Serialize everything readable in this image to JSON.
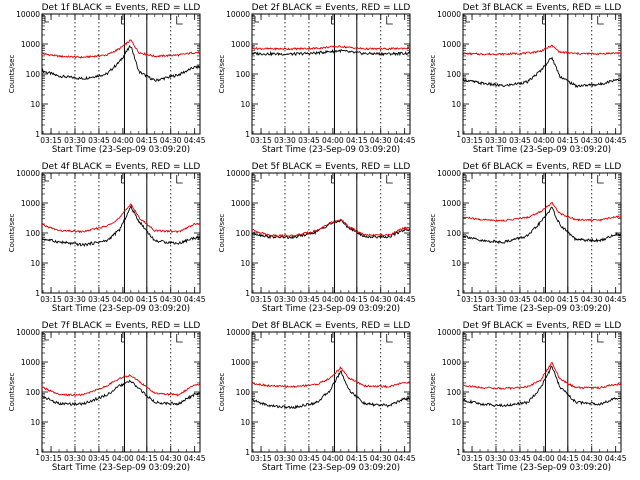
{
  "chart_data": [
    {
      "type": "line",
      "title": "Det 1f BLACK = Events, RED = LLD",
      "xlabel": "Start Time (23-Sep-09 03:09:20)",
      "ylabel": "Counts/sec",
      "x_ticks": [
        "03:15",
        "03:30",
        "03:45",
        "04:00",
        "04:15",
        "04:30",
        "04:45"
      ],
      "y_ticks": [
        "1",
        "10",
        "100",
        "1000",
        "10000"
      ],
      "ylim": [
        1,
        10000
      ],
      "yscale": "log",
      "vlines_dotted": [
        "03:30",
        "03:45",
        "04:30"
      ],
      "vlines_solid": [
        "04:01",
        "04:15"
      ],
      "x": [
        "03:09",
        "03:20",
        "03:35",
        "03:50",
        "03:58",
        "04:05",
        "04:10",
        "04:20",
        "04:35",
        "04:45"
      ],
      "series": [
        {
          "name": "BLACK = Events",
          "color": "#000000",
          "values": [
            130,
            85,
            70,
            100,
            260,
            900,
            120,
            60,
            95,
            170
          ]
        },
        {
          "name": "RED = LLD",
          "color": "#e00000",
          "values": [
            480,
            390,
            360,
            430,
            700,
            1350,
            520,
            390,
            430,
            520
          ]
        }
      ]
    },
    {
      "type": "line",
      "title": "Det 2f BLACK = Events, RED = LLD",
      "xlabel": "Start Time (23-Sep-09 03:09:20)",
      "ylabel": "Counts/sec",
      "x_ticks": [
        "03:15",
        "03:30",
        "03:45",
        "04:00",
        "04:15",
        "04:30",
        "04:45"
      ],
      "y_ticks": [
        "1",
        "10",
        "100",
        "1000",
        "10000"
      ],
      "ylim": [
        1,
        10000
      ],
      "yscale": "log",
      "vlines_dotted": [
        "03:30",
        "03:45",
        "04:30"
      ],
      "vlines_solid": [
        "04:01",
        "04:15"
      ],
      "x": [
        "03:09",
        "03:20",
        "03:35",
        "03:50",
        "03:58",
        "04:05",
        "04:10",
        "04:20",
        "04:35",
        "04:45"
      ],
      "series": [
        {
          "name": "BLACK = Events",
          "color": "#000000",
          "values": [
            480,
            470,
            460,
            500,
            560,
            600,
            540,
            480,
            470,
            490
          ]
        },
        {
          "name": "RED = LLD",
          "color": "#e00000",
          "values": [
            720,
            690,
            690,
            720,
            790,
            830,
            770,
            690,
            690,
            720
          ]
        }
      ]
    },
    {
      "type": "line",
      "title": "Det 3f BLACK = Events, RED = LLD",
      "xlabel": "Start Time (23-Sep-09 03:09:20)",
      "ylabel": "Counts/sec",
      "x_ticks": [
        "03:15",
        "03:30",
        "03:45",
        "04:00",
        "04:15",
        "04:30",
        "04:45"
      ],
      "y_ticks": [
        "1",
        "10",
        "100",
        "1000",
        "10000"
      ],
      "ylim": [
        1,
        10000
      ],
      "yscale": "log",
      "vlines_dotted": [
        "03:30",
        "03:45",
        "04:30"
      ],
      "vlines_solid": [
        "04:01",
        "04:15"
      ],
      "x": [
        "03:09",
        "03:20",
        "03:35",
        "03:50",
        "03:58",
        "04:05",
        "04:10",
        "04:20",
        "04:35",
        "04:45"
      ],
      "series": [
        {
          "name": "BLACK = Events",
          "color": "#000000",
          "values": [
            65,
            50,
            40,
            55,
            130,
            360,
            85,
            40,
            45,
            65
          ]
        },
        {
          "name": "RED = LLD",
          "color": "#e00000",
          "values": [
            480,
            460,
            460,
            500,
            580,
            880,
            540,
            480,
            470,
            500
          ]
        }
      ]
    },
    {
      "type": "line",
      "title": "Det 4f BLACK = Events, RED = LLD",
      "xlabel": "Start Time (23-Sep-09 03:09:20)",
      "ylabel": "Counts/sec",
      "x_ticks": [
        "03:15",
        "03:30",
        "03:45",
        "04:00",
        "04:15",
        "04:30",
        "04:45"
      ],
      "y_ticks": [
        "1",
        "10",
        "100",
        "1000",
        "10000"
      ],
      "ylim": [
        1,
        10000
      ],
      "yscale": "log",
      "vlines_dotted": [
        "03:30",
        "03:45",
        "04:30"
      ],
      "vlines_solid": [
        "04:01",
        "04:15"
      ],
      "x": [
        "03:09",
        "03:20",
        "03:35",
        "03:50",
        "03:58",
        "04:05",
        "04:10",
        "04:20",
        "04:35",
        "04:45"
      ],
      "series": [
        {
          "name": "BLACK = Events",
          "color": "#000000",
          "values": [
            65,
            50,
            40,
            55,
            130,
            750,
            250,
            55,
            45,
            70
          ]
        },
        {
          "name": "RED = LLD",
          "color": "#e00000",
          "values": [
            190,
            120,
            110,
            170,
            320,
            950,
            330,
            120,
            110,
            200
          ]
        }
      ]
    },
    {
      "type": "line",
      "title": "Det 5f BLACK = Events, RED = LLD",
      "xlabel": "Start Time (23-Sep-09 03:09:20)",
      "ylabel": "Counts/sec",
      "x_ticks": [
        "03:15",
        "03:30",
        "03:45",
        "04:00",
        "04:15",
        "04:30",
        "04:45"
      ],
      "y_ticks": [
        "1",
        "10",
        "100",
        "1000",
        "10000"
      ],
      "ylim": [
        1,
        10000
      ],
      "yscale": "log",
      "vlines_dotted": [
        "03:30",
        "03:45",
        "04:30"
      ],
      "vlines_solid": [
        "04:01",
        "04:15"
      ],
      "x": [
        "03:09",
        "03:20",
        "03:35",
        "03:50",
        "03:58",
        "04:05",
        "04:10",
        "04:20",
        "04:35",
        "04:45"
      ],
      "series": [
        {
          "name": "BLACK = Events",
          "color": "#000000",
          "values": [
            100,
            75,
            70,
            110,
            200,
            260,
            150,
            75,
            75,
            130
          ]
        },
        {
          "name": "RED = LLD",
          "color": "#e00000",
          "values": [
            130,
            85,
            80,
            120,
            210,
            280,
            160,
            85,
            85,
            150
          ]
        }
      ]
    },
    {
      "type": "line",
      "title": "Det 6f BLACK = Events, RED = LLD",
      "xlabel": "Start Time (23-Sep-09 03:09:20)",
      "ylabel": "Counts/sec",
      "x_ticks": [
        "03:15",
        "03:30",
        "03:45",
        "04:00",
        "04:15",
        "04:30",
        "04:45"
      ],
      "y_ticks": [
        "1",
        "10",
        "100",
        "1000",
        "10000"
      ],
      "ylim": [
        1,
        10000
      ],
      "yscale": "log",
      "vlines_dotted": [
        "03:30",
        "03:45",
        "04:30"
      ],
      "vlines_solid": [
        "04:01",
        "04:15"
      ],
      "x": [
        "03:09",
        "03:20",
        "03:35",
        "03:50",
        "03:58",
        "04:05",
        "04:10",
        "04:20",
        "04:35",
        "04:45"
      ],
      "series": [
        {
          "name": "BLACK = Events",
          "color": "#000000",
          "values": [
            85,
            55,
            50,
            80,
            230,
            700,
            190,
            60,
            55,
            90
          ]
        },
        {
          "name": "RED = LLD",
          "color": "#e00000",
          "values": [
            340,
            280,
            260,
            330,
            520,
            1000,
            450,
            280,
            270,
            350
          ]
        }
      ]
    },
    {
      "type": "line",
      "title": "Det 7f BLACK = Events, RED = LLD",
      "xlabel": "Start Time (23-Sep-09 03:09:20)",
      "ylabel": "Counts/sec",
      "x_ticks": [
        "03:15",
        "03:30",
        "03:45",
        "04:00",
        "04:15",
        "04:30",
        "04:45"
      ],
      "y_ticks": [
        "1",
        "10",
        "100",
        "1000",
        "10000"
      ],
      "ylim": [
        1,
        10000
      ],
      "yscale": "log",
      "vlines_dotted": [
        "03:30",
        "03:45",
        "04:30"
      ],
      "vlines_solid": [
        "04:01",
        "04:15"
      ],
      "x": [
        "03:09",
        "03:20",
        "03:35",
        "03:50",
        "03:58",
        "04:05",
        "04:10",
        "04:20",
        "04:35",
        "04:45"
      ],
      "series": [
        {
          "name": "BLACK = Events",
          "color": "#000000",
          "values": [
            75,
            40,
            40,
            80,
            160,
            230,
            130,
            45,
            40,
            85
          ]
        },
        {
          "name": "RED = LLD",
          "color": "#e00000",
          "values": [
            150,
            80,
            80,
            160,
            290,
            360,
            230,
            90,
            80,
            180
          ]
        }
      ]
    },
    {
      "type": "line",
      "title": "Det 8f BLACK = Events, RED = LLD",
      "xlabel": "Start Time (23-Sep-09 03:09:20)",
      "ylabel": "Counts/sec",
      "x_ticks": [
        "03:15",
        "03:30",
        "03:45",
        "04:00",
        "04:15",
        "04:30",
        "04:45"
      ],
      "y_ticks": [
        "1",
        "10",
        "100",
        "1000",
        "10000"
      ],
      "ylim": [
        1,
        10000
      ],
      "yscale": "log",
      "vlines_dotted": [
        "03:30",
        "03:45",
        "04:30"
      ],
      "vlines_solid": [
        "04:01",
        "04:15"
      ],
      "x": [
        "03:09",
        "03:20",
        "03:35",
        "03:50",
        "03:58",
        "04:05",
        "04:10",
        "04:20",
        "04:35",
        "04:45"
      ],
      "series": [
        {
          "name": "BLACK = Events",
          "color": "#000000",
          "values": [
            55,
            35,
            30,
            45,
            110,
            500,
            120,
            40,
            35,
            60
          ]
        },
        {
          "name": "RED = LLD",
          "color": "#e00000",
          "values": [
            200,
            160,
            150,
            180,
            280,
            650,
            290,
            160,
            150,
            210
          ]
        }
      ]
    },
    {
      "type": "line",
      "title": "Det 9f BLACK = Events, RED = LLD",
      "xlabel": "Start Time (23-Sep-09 03:09:20)",
      "ylabel": "Counts/sec",
      "x_ticks": [
        "03:15",
        "03:30",
        "03:45",
        "04:00",
        "04:15",
        "04:30",
        "04:45"
      ],
      "y_ticks": [
        "1",
        "10",
        "100",
        "1000",
        "10000"
      ],
      "ylim": [
        1,
        10000
      ],
      "yscale": "log",
      "vlines_dotted": [
        "03:30",
        "03:45",
        "04:30"
      ],
      "vlines_solid": [
        "04:01",
        "04:15"
      ],
      "x": [
        "03:09",
        "03:20",
        "03:35",
        "03:50",
        "03:58",
        "04:05",
        "04:10",
        "04:20",
        "04:35",
        "04:45"
      ],
      "series": [
        {
          "name": "BLACK = Events",
          "color": "#000000",
          "values": [
            55,
            40,
            35,
            45,
            140,
            700,
            150,
            45,
            40,
            60
          ]
        },
        {
          "name": "RED = LLD",
          "color": "#e00000",
          "values": [
            170,
            140,
            130,
            150,
            250,
            950,
            270,
            140,
            140,
            180
          ]
        }
      ]
    }
  ]
}
